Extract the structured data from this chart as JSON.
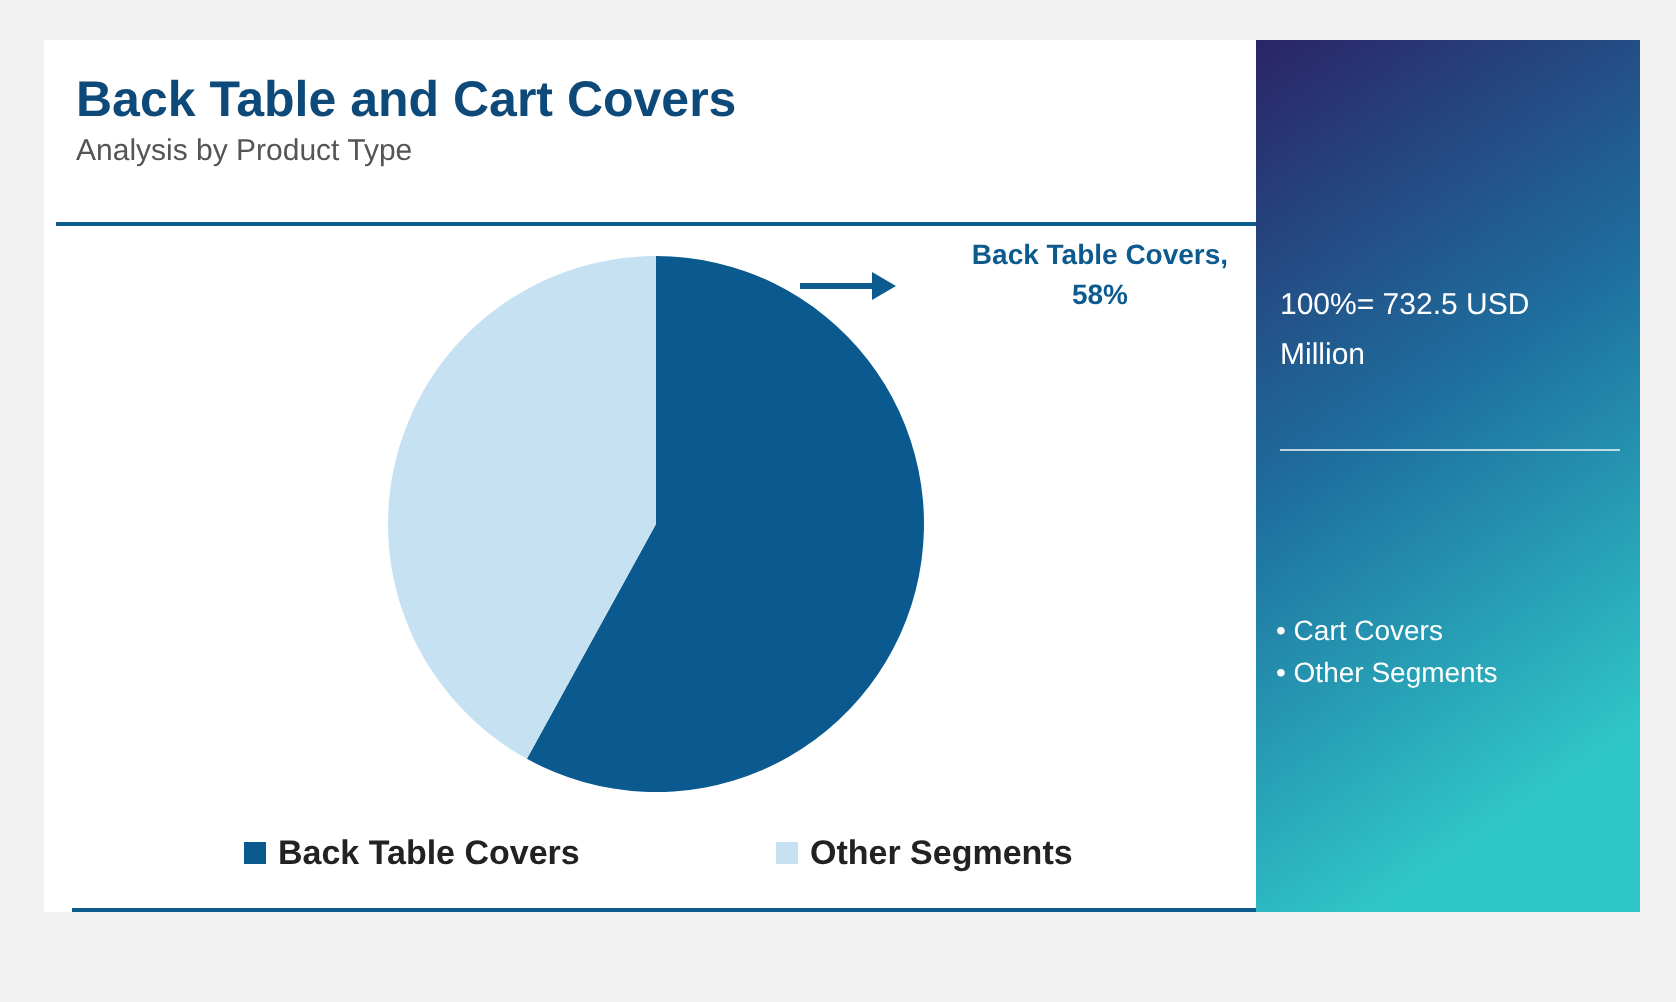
{
  "chart_data": {
    "type": "pie",
    "title": "Back Table and Cart Covers",
    "subtitle": "Analysis by Product Type",
    "categories": [
      "Back Table Covers",
      "Other Segments"
    ],
    "values": [
      58,
      42
    ],
    "colors": [
      "#0a5a8f",
      "#c5e1f2"
    ],
    "value_labels": [
      "Back Table Covers, 58%",
      null
    ],
    "legend": "bottom",
    "annotations": [
      "100%= 732.5 USD Million",
      "• Cart Covers",
      "• Other Segments"
    ]
  }
}
